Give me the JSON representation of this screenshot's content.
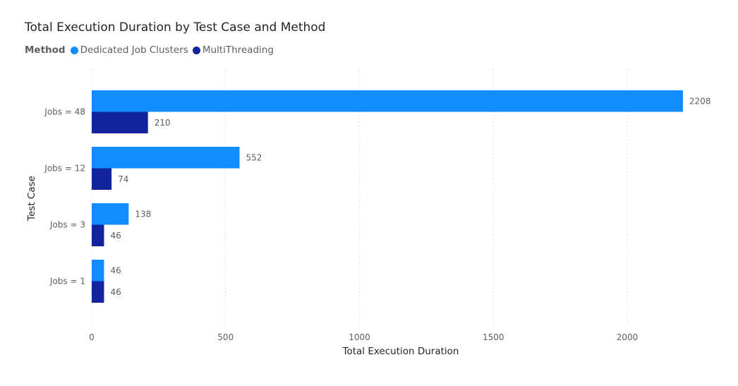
{
  "chart_data": {
    "type": "bar",
    "orientation": "horizontal",
    "title": "Total Execution Duration by Test Case and Method",
    "legend_title": "Method",
    "legend_position": "top-left",
    "xlabel": "Total Execution Duration",
    "ylabel": "Test Case",
    "xlim": [
      0,
      2300
    ],
    "x_ticks": [
      0,
      500,
      1000,
      1500,
      2000
    ],
    "x_tick_labels": [
      "0",
      "500",
      "1000",
      "1500",
      "2000"
    ],
    "grid": "vertical dotted",
    "categories": [
      "Jobs = 48",
      "Jobs = 12",
      "Jobs = 3",
      "Jobs = 1"
    ],
    "series": [
      {
        "name": "Dedicated Job Clusters",
        "color": "#118DFF",
        "values": [
          2208,
          552,
          138,
          46
        ]
      },
      {
        "name": "MultiThreading",
        "color": "#12239E",
        "values": [
          210,
          74,
          46,
          46
        ]
      }
    ]
  }
}
